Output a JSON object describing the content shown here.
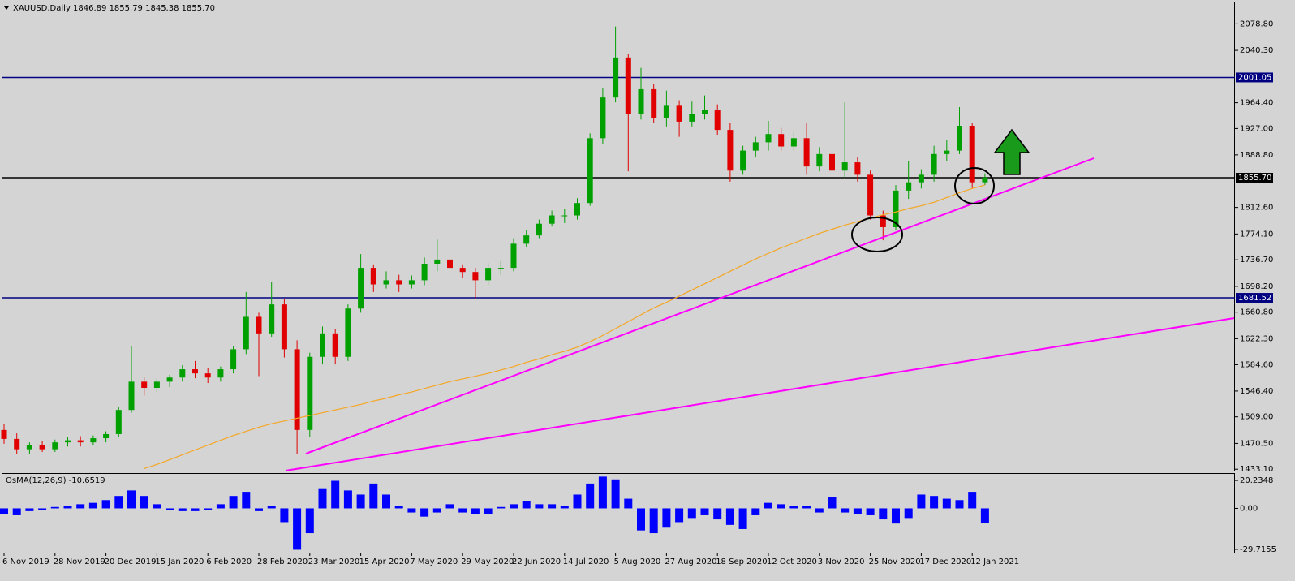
{
  "chart_data": [
    {
      "type": "candlestick",
      "title": "XAUUSD,Daily  1846.89 1855.79 1845.38 1855.70",
      "categories": [
        "6 Nov 2019",
        null,
        null,
        null,
        "28 Nov 2019",
        null,
        null,
        null,
        "20 Dec 2019",
        null,
        null,
        null,
        "15 Jan 2020",
        null,
        null,
        null,
        "6 Feb 2020",
        null,
        null,
        null,
        "28 Feb 2020",
        null,
        null,
        null,
        "23 Mar 2020",
        null,
        null,
        null,
        "15 Apr 2020",
        null,
        null,
        null,
        "7 May 2020",
        null,
        null,
        null,
        "29 May 2020",
        null,
        null,
        null,
        "22 Jun 2020",
        null,
        null,
        null,
        "14 Jul 2020",
        null,
        null,
        null,
        "5 Aug 2020",
        null,
        null,
        null,
        "27 Aug 2020",
        null,
        null,
        null,
        "18 Sep 2020",
        null,
        null,
        null,
        "12 Oct 2020",
        null,
        null,
        null,
        "3 Nov 2020",
        null,
        null,
        null,
        "25 Nov 2020",
        null,
        null,
        null,
        "17 Dec 2020",
        null,
        null,
        null,
        "12 Jan 2021",
        null
      ],
      "open": [
        1490,
        1477,
        1462,
        1468,
        1462,
        1472,
        1475,
        1472,
        1478,
        1484,
        1519,
        1560,
        1551,
        1560,
        1566,
        1578,
        1572,
        1566,
        1578,
        1607,
        1654,
        1630,
        1672,
        1607,
        1490,
        1596,
        1630,
        1596,
        1666,
        1725,
        1701,
        1707,
        1701,
        1707,
        1731,
        1737,
        1725,
        1719,
        1707,
        1725,
        1725,
        1760,
        1772,
        1789,
        1801,
        1801,
        1819,
        1913,
        1972,
        2030,
        1948,
        1984,
        1942,
        1960,
        1937,
        1948,
        1954,
        1925,
        1866,
        1895,
        1907,
        1919,
        1901,
        1913,
        1872,
        1890,
        1866,
        1878,
        1860,
        1801,
        1784,
        1837,
        1849,
        1860,
        1890,
        1895,
        1931,
        1849
      ],
      "high": [
        1498,
        1485,
        1472,
        1474,
        1476,
        1480,
        1481,
        1482,
        1488,
        1524,
        1612,
        1566,
        1565,
        1570,
        1584,
        1590,
        1580,
        1582,
        1612,
        1690,
        1660,
        1705,
        1680,
        1620,
        1602,
        1640,
        1636,
        1672,
        1745,
        1730,
        1720,
        1715,
        1714,
        1740,
        1766,
        1745,
        1730,
        1725,
        1732,
        1735,
        1768,
        1780,
        1795,
        1808,
        1810,
        1826,
        1920,
        1985,
        2075,
        2035,
        2015,
        1992,
        1982,
        1968,
        1966,
        1975,
        1962,
        1935,
        1902,
        1915,
        1938,
        1928,
        1922,
        1935,
        1900,
        1898,
        1965,
        1886,
        1866,
        1808,
        1845,
        1880,
        1868,
        1902,
        1910,
        1958,
        1935,
        1862
      ],
      "low": [
        1470,
        1455,
        1455,
        1458,
        1458,
        1466,
        1466,
        1468,
        1472,
        1480,
        1515,
        1540,
        1545,
        1552,
        1560,
        1565,
        1558,
        1560,
        1572,
        1600,
        1568,
        1625,
        1595,
        1455,
        1480,
        1585,
        1585,
        1590,
        1660,
        1690,
        1695,
        1690,
        1695,
        1700,
        1720,
        1715,
        1710,
        1680,
        1700,
        1715,
        1720,
        1755,
        1768,
        1785,
        1790,
        1795,
        1815,
        1905,
        1965,
        1865,
        1940,
        1935,
        1930,
        1915,
        1930,
        1940,
        1918,
        1850,
        1860,
        1885,
        1895,
        1895,
        1895,
        1860,
        1865,
        1855,
        1855,
        1850,
        1795,
        1765,
        1780,
        1825,
        1840,
        1850,
        1880,
        1890,
        1840,
        1845
      ],
      "close": [
        1477,
        1462,
        1468,
        1462,
        1472,
        1475,
        1472,
        1478,
        1484,
        1519,
        1560,
        1551,
        1560,
        1566,
        1578,
        1572,
        1566,
        1578,
        1607,
        1654,
        1630,
        1672,
        1607,
        1490,
        1596,
        1630,
        1596,
        1666,
        1725,
        1701,
        1707,
        1701,
        1707,
        1731,
        1737,
        1725,
        1719,
        1707,
        1725,
        1725,
        1760,
        1772,
        1789,
        1801,
        1801,
        1819,
        1913,
        1972,
        2030,
        1948,
        1984,
        1942,
        1960,
        1937,
        1948,
        1954,
        1925,
        1866,
        1895,
        1907,
        1919,
        1901,
        1913,
        1872,
        1890,
        1866,
        1878,
        1860,
        1801,
        1784,
        1837,
        1849,
        1860,
        1890,
        1895,
        1931,
        1849,
        1856
      ],
      "ma": [
        null,
        null,
        null,
        null,
        null,
        null,
        null,
        null,
        null,
        null,
        null,
        1434,
        1440,
        1447,
        1454,
        1461,
        1468,
        1475,
        1482,
        1488,
        1494,
        1499,
        1503,
        1507,
        1511,
        1515,
        1519,
        1523,
        1527,
        1532,
        1536,
        1541,
        1545,
        1550,
        1555,
        1560,
        1564,
        1568,
        1572,
        1577,
        1582,
        1588,
        1593,
        1599,
        1604,
        1610,
        1618,
        1627,
        1637,
        1647,
        1657,
        1667,
        1675,
        1684,
        1693,
        1702,
        1711,
        1720,
        1729,
        1738,
        1746,
        1754,
        1761,
        1768,
        1775,
        1781,
        1787,
        1792,
        1797,
        1802,
        1806,
        1811,
        1815,
        1820,
        1827,
        1834,
        1840,
        1845
      ],
      "up_color": "#00a000",
      "down_color": "#e00000",
      "ma_color": "#f5a623",
      "ylim": [
        1431,
        2111
      ],
      "yticks": [
        {
          "value": 2078.8,
          "label": "2078.80"
        },
        {
          "value": 2040.3,
          "label": "2040.30"
        },
        {
          "value": 1964.4,
          "label": "1964.40"
        },
        {
          "value": 1927,
          "label": "1927.00"
        },
        {
          "value": 1888.8,
          "label": "1888.80"
        },
        {
          "value": 1812.6,
          "label": "1812.60"
        },
        {
          "value": 1774.1,
          "label": "1774.10"
        },
        {
          "value": 1736.7,
          "label": "1736.70"
        },
        {
          "value": 1698.2,
          "label": "1698.20"
        },
        {
          "value": 1660.8,
          "label": "1660.80"
        },
        {
          "value": 1622.3,
          "label": "1622.30"
        },
        {
          "value": 1584.6,
          "label": "1584.60"
        },
        {
          "value": 1546.4,
          "label": "1546.40"
        },
        {
          "value": 1509,
          "label": "1509.00"
        },
        {
          "value": 1470.5,
          "label": "1470.50"
        },
        {
          "value": 1433.1,
          "label": "1433.10"
        }
      ],
      "levels": [
        {
          "value": 2001.05,
          "label": "2001.05",
          "color": "#000080"
        },
        {
          "value": 1855.7,
          "label": "1855.70",
          "color": "#000000"
        },
        {
          "value": 1681.52,
          "label": "1681.52",
          "color": "#000080"
        }
      ]
    },
    {
      "type": "bar",
      "title": "OsMA(12,26,9) -10.6519",
      "values": [
        -4,
        -5,
        -2,
        -1,
        1,
        2,
        3,
        4,
        6,
        9,
        13,
        9,
        3,
        -1,
        -2,
        -2,
        -1,
        3,
        9,
        12,
        -2,
        2,
        -10,
        -30,
        -18,
        14,
        20,
        13,
        10,
        18,
        10,
        2,
        -3,
        -6,
        -3,
        3,
        -3,
        -4,
        -4,
        1,
        3,
        5,
        3,
        3,
        2,
        10,
        18,
        23,
        21,
        7,
        -16,
        -18,
        -14,
        -10,
        -7,
        -5,
        -8,
        -12,
        -15,
        -5,
        4,
        3,
        2,
        2,
        -3,
        8,
        -3,
        -4,
        -5,
        -8,
        -11,
        -7,
        10,
        9,
        7,
        6,
        12,
        -10.6519
      ],
      "color": "#0000ff",
      "ylim": [
        -32.1,
        25
      ],
      "yticks": [
        20.2348,
        {
          "value": 0,
          "label": "0.00"
        },
        -29.7155
      ]
    }
  ]
}
